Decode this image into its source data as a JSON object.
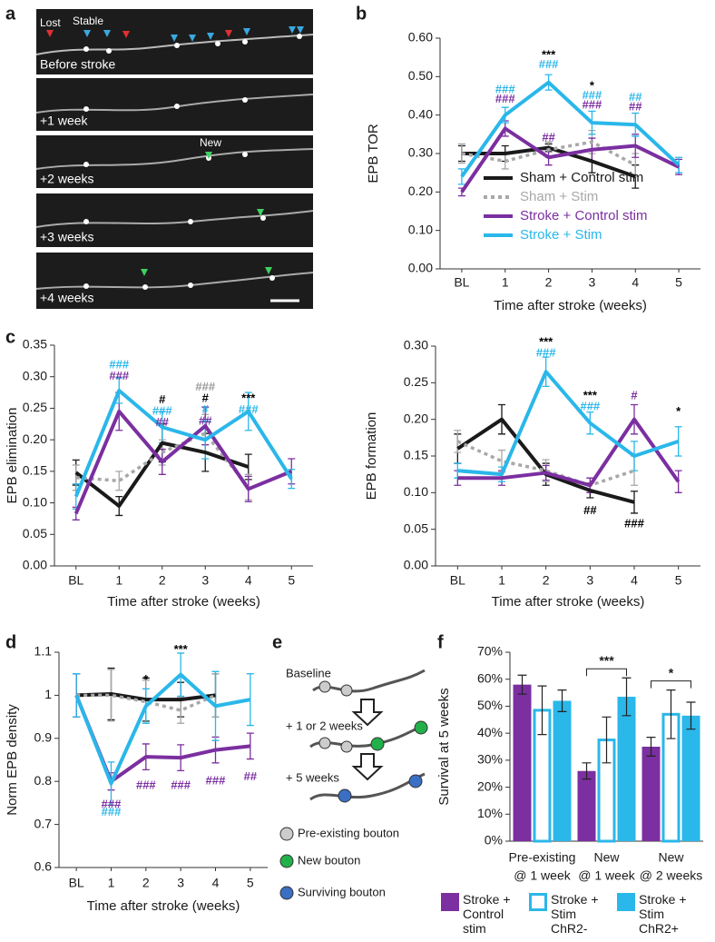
{
  "panels": [
    "a",
    "b",
    "c",
    "d",
    "e",
    "f"
  ],
  "images": {
    "labels": [
      "Lost",
      "Stable",
      "Before stroke",
      "+1 week",
      "New",
      "+2 weeks",
      "+3 weeks",
      "+4 weeks"
    ]
  },
  "diagram": {
    "steps": [
      "Baseline",
      "+ 1 or 2 weeks",
      "+ 5 weeks"
    ],
    "legend": [
      "Pre-existing bouton",
      "New bouton",
      "Surviving bouton"
    ]
  },
  "chart_data": [
    {
      "type": "line",
      "y_label": "EPB TOR",
      "x_label": "Time after stroke (weeks)",
      "categories": [
        "BL",
        "1",
        "2",
        "3",
        "4",
        "5"
      ],
      "ylim": [
        0,
        0.6
      ],
      "yticks": [
        {
          "value": 0,
          "label": "0.00"
        },
        {
          "value": 0.1,
          "label": "0.10"
        },
        {
          "value": 0.2,
          "label": "0.20"
        },
        {
          "value": 0.3,
          "label": "0.30"
        },
        {
          "value": 0.4,
          "label": "0.40"
        },
        {
          "value": 0.5,
          "label": "0.50"
        },
        {
          "value": 0.6,
          "label": "0.60"
        }
      ],
      "legend": "lower left",
      "series": [
        {
          "name": "Sham + Control stim",
          "color": "#1a1a1a",
          "dashed": false,
          "values": [
            0.3,
            0.3,
            0.315,
            0.28,
            0.24,
            null
          ],
          "errors": [
            0.02,
            0.02,
            0.01,
            0.03,
            0.03,
            null
          ]
        },
        {
          "name": "Sham + Stim",
          "color": "#a8a8a8",
          "dashed": true,
          "values": [
            0.3,
            0.28,
            0.31,
            0.33,
            0.27,
            null
          ],
          "errors": [
            0.025,
            0.02,
            0.02,
            0.03,
            0.03,
            null
          ]
        },
        {
          "name": "Stroke + Control stim",
          "color": "#7b2fa0",
          "dashed": false,
          "values": [
            0.2,
            0.365,
            0.29,
            0.31,
            0.32,
            0.265
          ],
          "errors": [
            0.01,
            0.02,
            0.02,
            0.03,
            0.03,
            0.02
          ]
        },
        {
          "name": "Stroke + Stim",
          "color": "#2ab7ea",
          "dashed": false,
          "values": [
            0.24,
            0.4,
            0.485,
            0.38,
            0.375,
            0.27
          ],
          "errors": [
            0.02,
            0.02,
            0.02,
            0.03,
            0.03,
            0.02
          ]
        }
      ],
      "annotations": [
        {
          "x": "1",
          "y": 0.465,
          "text": "###",
          "color": "#2ab7ea"
        },
        {
          "x": "1",
          "y": 0.44,
          "text": "###",
          "color": "#7b2fa0"
        },
        {
          "x": "2",
          "y": 0.555,
          "text": "***",
          "color": "#000000"
        },
        {
          "x": "2",
          "y": 0.53,
          "text": "###",
          "color": "#2ab7ea"
        },
        {
          "x": "2",
          "y": 0.34,
          "text": "##",
          "color": "#7b2fa0"
        },
        {
          "x": "3",
          "y": 0.475,
          "text": "*",
          "color": "#000000"
        },
        {
          "x": "3",
          "y": 0.45,
          "text": "###",
          "color": "#2ab7ea"
        },
        {
          "x": "3",
          "y": 0.425,
          "text": "###",
          "color": "#7b2fa0"
        },
        {
          "x": "4",
          "y": 0.445,
          "text": "##",
          "color": "#2ab7ea"
        },
        {
          "x": "4",
          "y": 0.42,
          "text": "##",
          "color": "#7b2fa0"
        }
      ]
    },
    {
      "type": "line",
      "y_label": "EPB elimination",
      "x_label": "Time after stroke (weeks)",
      "categories": [
        "BL",
        "1",
        "2",
        "3",
        "4",
        "5"
      ],
      "ylim": [
        0,
        0.35
      ],
      "yticks": [
        {
          "value": 0,
          "label": "0.00"
        },
        {
          "value": 0.05,
          "label": "0.05"
        },
        {
          "value": 0.1,
          "label": "0.10"
        },
        {
          "value": 0.15,
          "label": "0.15"
        },
        {
          "value": 0.2,
          "label": "0.20"
        },
        {
          "value": 0.25,
          "label": "0.25"
        },
        {
          "value": 0.3,
          "label": "0.30"
        },
        {
          "value": 0.35,
          "label": "0.35"
        }
      ],
      "series": [
        {
          "color": "#1a1a1a",
          "dashed": false,
          "values": [
            0.148,
            0.095,
            0.195,
            0.18,
            0.157,
            null
          ],
          "errors": [
            0.02,
            0.015,
            0.03,
            0.03,
            0.02,
            null
          ]
        },
        {
          "color": "#a8a8a8",
          "dashed": true,
          "values": [
            0.14,
            0.135,
            0.18,
            0.21,
            0.125,
            null
          ],
          "errors": [
            0.02,
            0.015,
            0.02,
            0.03,
            0.02,
            null
          ]
        },
        {
          "color": "#7b2fa0",
          "dashed": false,
          "values": [
            0.083,
            0.245,
            0.165,
            0.222,
            0.122,
            0.15
          ],
          "errors": [
            0.01,
            0.03,
            0.02,
            0.03,
            0.02,
            0.02
          ]
        },
        {
          "color": "#2ab7ea",
          "dashed": false,
          "values": [
            0.11,
            0.278,
            0.22,
            0.2,
            0.245,
            0.138
          ],
          "errors": [
            0.02,
            0.02,
            0.025,
            0.03,
            0.03,
            0.015
          ]
        }
      ],
      "annotations": [
        {
          "x": "1",
          "y": 0.318,
          "text": "###",
          "color": "#2ab7ea"
        },
        {
          "x": "1",
          "y": 0.3,
          "text": "###",
          "color": "#7b2fa0"
        },
        {
          "x": "2",
          "y": 0.263,
          "text": "#",
          "color": "#000000"
        },
        {
          "x": "2",
          "y": 0.245,
          "text": "###",
          "color": "#2ab7ea"
        },
        {
          "x": "2",
          "y": 0.227,
          "text": "##",
          "color": "#7b2fa0"
        },
        {
          "x": "3",
          "y": 0.283,
          "text": "###",
          "color": "#999999"
        },
        {
          "x": "3",
          "y": 0.265,
          "text": "#",
          "color": "#000000"
        },
        {
          "x": "3",
          "y": 0.247,
          "text": "#",
          "color": "#2ab7ea"
        },
        {
          "x": "3",
          "y": 0.229,
          "text": "##",
          "color": "#7b2fa0"
        },
        {
          "x": "4",
          "y": 0.265,
          "text": "***",
          "color": "#000000"
        },
        {
          "x": "4",
          "y": 0.247,
          "text": "###",
          "color": "#2ab7ea"
        }
      ]
    },
    {
      "type": "line",
      "y_label": "EPB formation",
      "x_label": "Time after stroke (weeks)",
      "categories": [
        "BL",
        "1",
        "2",
        "3",
        "4",
        "5"
      ],
      "ylim": [
        0,
        0.3
      ],
      "yticks": [
        {
          "value": 0,
          "label": "0.00"
        },
        {
          "value": 0.05,
          "label": "0.05"
        },
        {
          "value": 0.1,
          "label": "0.10"
        },
        {
          "value": 0.15,
          "label": "0.15"
        },
        {
          "value": 0.2,
          "label": "0.20"
        },
        {
          "value": 0.25,
          "label": "0.25"
        },
        {
          "value": 0.3,
          "label": "0.30"
        }
      ],
      "series": [
        {
          "color": "#1a1a1a",
          "dashed": false,
          "values": [
            0.16,
            0.2,
            0.125,
            0.103,
            0.087,
            null
          ],
          "errors": [
            0.02,
            0.02,
            0.015,
            0.01,
            0.015,
            null
          ]
        },
        {
          "color": "#a8a8a8",
          "dashed": true,
          "values": [
            0.17,
            0.143,
            0.13,
            0.11,
            0.13,
            null
          ],
          "errors": [
            0.015,
            0.015,
            0.015,
            0.01,
            0.02,
            null
          ]
        },
        {
          "color": "#7b2fa0",
          "dashed": false,
          "values": [
            0.12,
            0.12,
            0.127,
            0.11,
            0.2,
            0.115
          ],
          "errors": [
            0.01,
            0.01,
            0.01,
            0.01,
            0.02,
            0.015
          ]
        },
        {
          "color": "#2ab7ea",
          "dashed": false,
          "values": [
            0.13,
            0.125,
            0.265,
            0.195,
            0.15,
            0.17
          ],
          "errors": [
            0.01,
            0.01,
            0.02,
            0.015,
            0.02,
            0.02
          ]
        }
      ],
      "annotations": [
        {
          "x": "2",
          "y": 0.305,
          "text": "***",
          "color": "#000000"
        },
        {
          "x": "2",
          "y": 0.29,
          "text": "###",
          "color": "#2ab7ea"
        },
        {
          "x": "3",
          "y": 0.232,
          "text": "***",
          "color": "#000000"
        },
        {
          "x": "3",
          "y": 0.217,
          "text": "###",
          "color": "#2ab7ea"
        },
        {
          "x": "3",
          "y": 0.075,
          "text": "##",
          "color": "#000000"
        },
        {
          "x": "4",
          "y": 0.232,
          "text": "#",
          "color": "#7b2fa0"
        },
        {
          "x": "4",
          "y": 0.057,
          "text": "###",
          "color": "#000000"
        },
        {
          "x": "5",
          "y": 0.21,
          "text": "*",
          "color": "#000000"
        }
      ]
    },
    {
      "type": "line",
      "y_label": "Norm EPB density",
      "x_label": "Time after stroke (weeks)",
      "categories": [
        "BL",
        "1",
        "2",
        "3",
        "4",
        "5"
      ],
      "ylim": [
        0.6,
        1.1
      ],
      "yticks": [
        0.6,
        0.7,
        0.8,
        0.9,
        1,
        1.1
      ],
      "series": [
        {
          "color": "#1a1a1a",
          "dashed": false,
          "values": [
            1,
            1.003,
            0.99,
            0.99,
            1.0,
            null
          ],
          "errors": [
            0.05,
            0.06,
            0.05,
            0.04,
            0.05,
            null
          ]
        },
        {
          "color": "#a8a8a8",
          "dashed": true,
          "values": [
            1,
            1.0,
            0.985,
            0.965,
            1.0,
            null
          ],
          "errors": [
            0.05,
            0.06,
            0.05,
            0.03,
            0.05,
            null
          ]
        },
        {
          "color": "#7b2fa0",
          "dashed": false,
          "values": [
            1,
            0.8,
            0.857,
            0.855,
            0.873,
            0.882
          ],
          "errors": [
            0.05,
            0.02,
            0.03,
            0.03,
            0.03,
            0.03
          ]
        },
        {
          "color": "#2ab7ea",
          "dashed": false,
          "values": [
            1,
            0.795,
            0.975,
            1.048,
            0.975,
            0.99
          ],
          "errors": [
            0.05,
            0.05,
            0.04,
            0.05,
            0.08,
            0.06
          ]
        }
      ],
      "annotations": [
        {
          "x": "2",
          "y": 1.035,
          "text": "*",
          "color": "#000000"
        },
        {
          "x": "3",
          "y": 1.105,
          "text": "***",
          "color": "#000000"
        },
        {
          "x": "1",
          "y": 0.745,
          "text": "###",
          "color": "#7b2fa0"
        },
        {
          "x": "1",
          "y": 0.727,
          "text": "###",
          "color": "#2ab7ea"
        },
        {
          "x": "2",
          "y": 0.79,
          "text": "###",
          "color": "#7b2fa0"
        },
        {
          "x": "3",
          "y": 0.79,
          "text": "###",
          "color": "#7b2fa0"
        },
        {
          "x": "4",
          "y": 0.8,
          "text": "###",
          "color": "#7b2fa0"
        },
        {
          "x": "5",
          "y": 0.81,
          "text": "##",
          "color": "#7b2fa0"
        }
      ]
    },
    {
      "type": "bar",
      "y_label": "Survival at 5 weeks",
      "categories": [
        [
          "Pre-existing",
          "@ 1 week"
        ],
        [
          "New",
          "@ 1 week"
        ],
        [
          "New",
          "@ 2 weeks"
        ]
      ],
      "ylim": [
        0,
        70
      ],
      "yticks": [
        {
          "value": 0,
          "label": "0%"
        },
        {
          "value": 10,
          "label": "10%"
        },
        {
          "value": 20,
          "label": "20%"
        },
        {
          "value": 30,
          "label": "30%"
        },
        {
          "value": 40,
          "label": "40%"
        },
        {
          "value": 50,
          "label": "50%"
        },
        {
          "value": 60,
          "label": "60%"
        },
        {
          "value": 70,
          "label": "70%"
        }
      ],
      "series": [
        {
          "name": "Stroke + Control stim",
          "color": "#7b2fa0",
          "hollow": false,
          "values": [
            58,
            26,
            35
          ],
          "errors": [
            3.5,
            3,
            3.5
          ]
        },
        {
          "name": "Stroke + Stim ChR2-",
          "color": "#2ab7ea",
          "hollow": true,
          "values": [
            48.5,
            37.5,
            47
          ],
          "errors": [
            9,
            8.5,
            9
          ]
        },
        {
          "name": "Stroke + Stim ChR2+",
          "color": "#2ab7ea",
          "hollow": false,
          "values": [
            52,
            53.5,
            46.5
          ],
          "errors": [
            4,
            7,
            5
          ]
        }
      ],
      "significance": [
        null,
        "***",
        "*"
      ]
    }
  ]
}
